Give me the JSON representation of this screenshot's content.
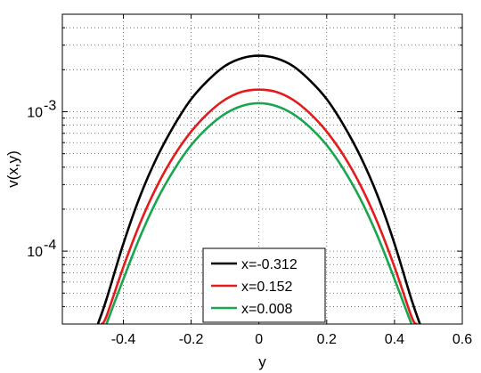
{
  "chart_data": {
    "type": "line",
    "xlabel": "y",
    "ylabel": "v(x,y)",
    "xlim": [
      -0.58,
      0.6
    ],
    "ylim": [
      3e-05,
      0.005
    ],
    "y_scale": "log",
    "grid": true,
    "legend_position": "bottom-center",
    "x_ticks": [
      {
        "value": -0.4,
        "label": "-0.4"
      },
      {
        "value": -0.2,
        "label": "-0.2"
      },
      {
        "value": 0.0,
        "label": "0"
      },
      {
        "value": 0.2,
        "label": "0.2"
      },
      {
        "value": 0.4,
        "label": "0.4"
      },
      {
        "value": 0.6,
        "label": "0.6"
      }
    ],
    "y_ticks": [
      {
        "value": 0.001,
        "base": "10",
        "exponent": "-3"
      },
      {
        "value": 0.0001,
        "base": "10",
        "exponent": "-4"
      }
    ],
    "series": [
      {
        "name": "x=-0.312",
        "color": "#000000",
        "x": [
          -0.475,
          -0.45,
          -0.4,
          -0.35,
          -0.3,
          -0.25,
          -0.2,
          -0.15,
          -0.1,
          -0.05,
          0.0,
          0.05,
          0.1,
          0.15,
          0.2,
          0.25,
          0.3,
          0.35,
          0.4,
          0.45,
          0.475
        ],
        "y": [
          3e-05,
          4.5e-05,
          0.000113,
          0.00025,
          0.000475,
          0.0008,
          0.00123,
          0.00168,
          0.00213,
          0.00242,
          0.00252,
          0.00242,
          0.00213,
          0.00168,
          0.00123,
          0.0008,
          0.000475,
          0.00025,
          0.000113,
          4.5e-05,
          3e-05
        ]
      },
      {
        "name": "x=0.152",
        "color": "#e41a1c",
        "x": [
          -0.465,
          -0.45,
          -0.4,
          -0.35,
          -0.3,
          -0.25,
          -0.2,
          -0.15,
          -0.1,
          -0.05,
          0.0,
          0.05,
          0.1,
          0.15,
          0.2,
          0.25,
          0.3,
          0.35,
          0.4,
          0.45,
          0.465
        ],
        "y": [
          3e-05,
          3.4e-05,
          7.7e-05,
          0.00016,
          0.000295,
          0.000485,
          0.00072,
          0.000975,
          0.00122,
          0.00139,
          0.00144,
          0.00139,
          0.00122,
          0.000975,
          0.00072,
          0.000485,
          0.000295,
          0.00016,
          7.7e-05,
          3.4e-05,
          3e-05
        ]
      },
      {
        "name": "x=0.008",
        "color": "#1aa550",
        "x": [
          -0.452,
          -0.45,
          -0.4,
          -0.35,
          -0.3,
          -0.25,
          -0.2,
          -0.15,
          -0.1,
          -0.05,
          0.0,
          0.05,
          0.1,
          0.15,
          0.2,
          0.25,
          0.3,
          0.35,
          0.4,
          0.45,
          0.452
        ],
        "y": [
          3e-05,
          3e-05,
          6.3e-05,
          0.000128,
          0.000235,
          0.000385,
          0.000575,
          0.000775,
          0.000965,
          0.0011,
          0.00115,
          0.0011,
          0.000965,
          0.000775,
          0.000575,
          0.000385,
          0.000235,
          0.000128,
          6.3e-05,
          3e-05,
          3e-05
        ]
      }
    ]
  }
}
